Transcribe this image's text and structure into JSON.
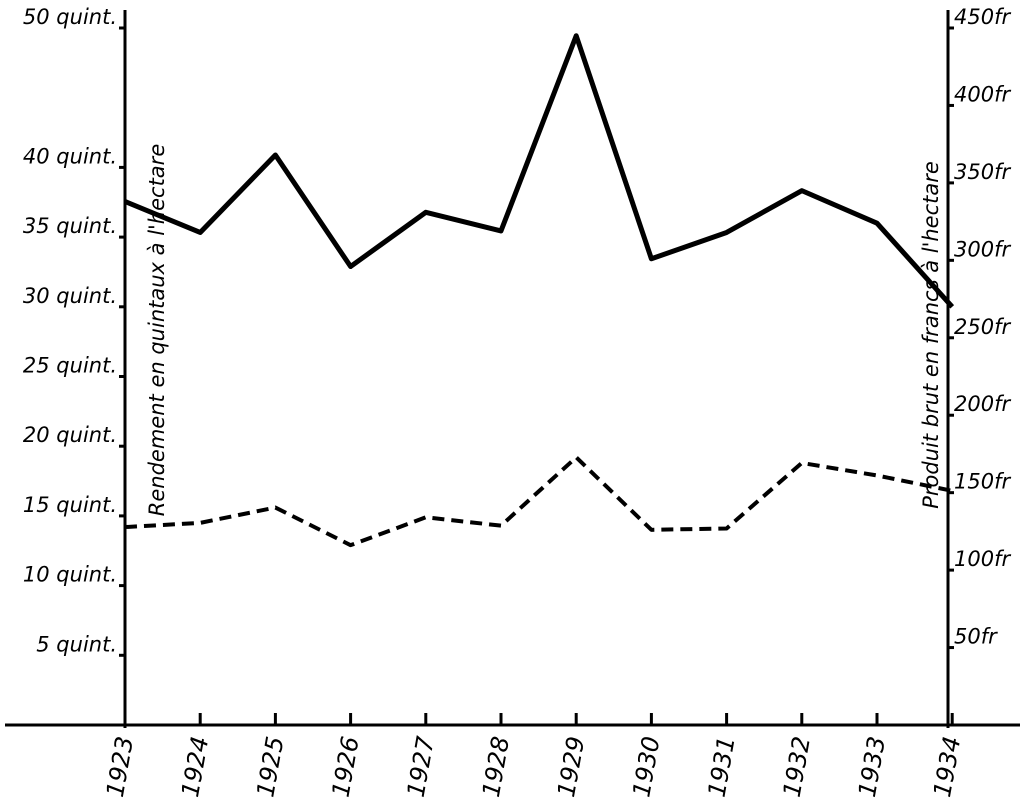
{
  "chart_data": {
    "type": "line",
    "y_label": "Rendement en quintaux à l'hectare",
    "y2_label": "Produit brut en francs à l'hectare",
    "categories": [
      "1923",
      "1924",
      "1925",
      "1926",
      "1927",
      "1928",
      "1929",
      "1930",
      "1931",
      "1932",
      "1933",
      "1934"
    ],
    "series": [
      {
        "color": "#000000",
        "line_style": "solid",
        "axis": "y2",
        "values": [
          338,
          318,
          368,
          296,
          331,
          319,
          445,
          301,
          318,
          345,
          324,
          270
        ]
      },
      {
        "color": "#000000",
        "line_style": "dashed",
        "axis": "y",
        "values": [
          14.2,
          14.5,
          15.6,
          12.9,
          14.9,
          14.3,
          19.2,
          14.0,
          14.1,
          18.8,
          17.9,
          16.8
        ]
      }
    ],
    "ylim": [
      0,
      50
    ],
    "yticks": [
      {
        "value": 5,
        "label": "5 quint."
      },
      {
        "value": 10,
        "label": "10 quint."
      },
      {
        "value": 15,
        "label": "15 quint."
      },
      {
        "value": 20,
        "label": "20 quint."
      },
      {
        "value": 25,
        "label": "25 quint."
      },
      {
        "value": 30,
        "label": "30 quint."
      },
      {
        "value": 35,
        "label": "35 quint."
      },
      {
        "value": 40,
        "label": "40 quint."
      },
      {
        "value": 50,
        "label": "50 quint."
      }
    ],
    "y2lim": [
      0,
      450
    ],
    "y2ticks": [
      {
        "value": 50,
        "label": "50fr"
      },
      {
        "value": 100,
        "label": "100fr"
      },
      {
        "value": 150,
        "label": "150fr"
      },
      {
        "value": 200,
        "label": "200fr"
      },
      {
        "value": 250,
        "label": "250fr"
      },
      {
        "value": 300,
        "label": "300fr"
      },
      {
        "value": 350,
        "label": "350fr"
      },
      {
        "value": 400,
        "label": "400fr"
      },
      {
        "value": 450,
        "label": "450fr"
      }
    ],
    "grid": false
  }
}
